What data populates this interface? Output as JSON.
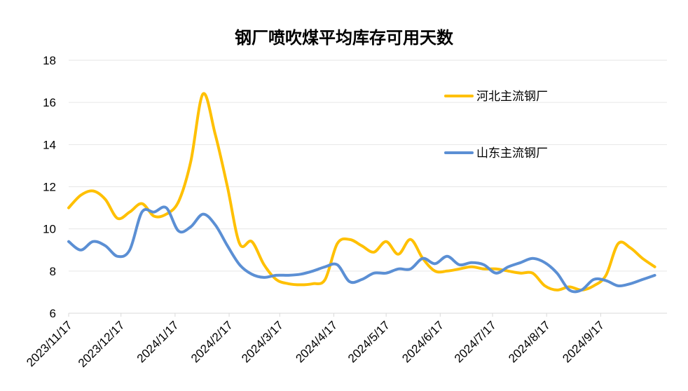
{
  "chart_data": {
    "type": "line",
    "title": "钢厂喷吹煤平均库存可用天数",
    "xlabel": "",
    "ylabel": "",
    "ylim": [
      6,
      18
    ],
    "yticks": [
      "6",
      "8",
      "10",
      "12",
      "14",
      "16",
      "18"
    ],
    "xlim": [
      "2023/11/17",
      "2024/10/25"
    ],
    "x_tick_labels": [
      "2023/11/17",
      "2023/12/17",
      "2024/1/17",
      "2024/2/17",
      "2024/3/17",
      "2024/4/17",
      "2024/5/17",
      "2024/6/17",
      "2024/7/17",
      "2024/8/17",
      "2024/9/17"
    ],
    "grid": "horizontal",
    "legend_position": "right",
    "series": [
      {
        "name": "河北主流钢厂",
        "color": "#FFC000",
        "points": [
          [
            "2023/11/17",
            11.0
          ],
          [
            "2023/11/24",
            11.6
          ],
          [
            "2023/12/1",
            11.8
          ],
          [
            "2023/12/8",
            11.4
          ],
          [
            "2023/12/15",
            10.5
          ],
          [
            "2023/12/22",
            10.8
          ],
          [
            "2023/12/29",
            11.2
          ],
          [
            "2024/1/5",
            10.6
          ],
          [
            "2024/1/12",
            10.7
          ],
          [
            "2024/1/19",
            11.3
          ],
          [
            "2024/1/26",
            13.2
          ],
          [
            "2024/2/2",
            16.4
          ],
          [
            "2024/2/9",
            14.5
          ],
          [
            "2024/2/16",
            12.0
          ],
          [
            "2024/2/23",
            9.3
          ],
          [
            "2024/3/1",
            9.4
          ],
          [
            "2024/3/8",
            8.3
          ],
          [
            "2024/3/15",
            7.6
          ],
          [
            "2024/3/22",
            7.4
          ],
          [
            "2024/3/29",
            7.35
          ],
          [
            "2024/4/5",
            7.4
          ],
          [
            "2024/4/12",
            7.6
          ],
          [
            "2024/4/19",
            9.3
          ],
          [
            "2024/4/26",
            9.5
          ],
          [
            "2024/5/3",
            9.2
          ],
          [
            "2024/5/10",
            8.9
          ],
          [
            "2024/5/17",
            9.4
          ],
          [
            "2024/5/24",
            8.8
          ],
          [
            "2024/5/31",
            9.5
          ],
          [
            "2024/6/7",
            8.6
          ],
          [
            "2024/6/14",
            8.0
          ],
          [
            "2024/6/21",
            8.0
          ],
          [
            "2024/6/28",
            8.1
          ],
          [
            "2024/7/5",
            8.2
          ],
          [
            "2024/7/12",
            8.1
          ],
          [
            "2024/7/19",
            8.1
          ],
          [
            "2024/7/26",
            8.0
          ],
          [
            "2024/8/2",
            7.9
          ],
          [
            "2024/8/9",
            7.9
          ],
          [
            "2024/8/16",
            7.3
          ],
          [
            "2024/8/23",
            7.1
          ],
          [
            "2024/8/30",
            7.25
          ],
          [
            "2024/9/6",
            7.1
          ],
          [
            "2024/9/13",
            7.3
          ],
          [
            "2024/9/20",
            7.8
          ],
          [
            "2024/9/27",
            9.3
          ],
          [
            "2024/10/4",
            9.1
          ],
          [
            "2024/10/11",
            8.6
          ],
          [
            "2024/10/18",
            8.2
          ]
        ]
      },
      {
        "name": "山东主流钢厂",
        "color": "#5B8FD4",
        "points": [
          [
            "2023/11/17",
            9.4
          ],
          [
            "2023/11/24",
            9.0
          ],
          [
            "2023/12/1",
            9.4
          ],
          [
            "2023/12/8",
            9.2
          ],
          [
            "2023/12/15",
            8.7
          ],
          [
            "2023/12/22",
            9.0
          ],
          [
            "2023/12/29",
            10.8
          ],
          [
            "2024/1/5",
            10.8
          ],
          [
            "2024/1/12",
            11.0
          ],
          [
            "2024/1/19",
            9.9
          ],
          [
            "2024/1/26",
            10.1
          ],
          [
            "2024/2/2",
            10.7
          ],
          [
            "2024/2/9",
            10.2
          ],
          [
            "2024/2/16",
            9.2
          ],
          [
            "2024/2/23",
            8.3
          ],
          [
            "2024/3/1",
            7.85
          ],
          [
            "2024/3/8",
            7.7
          ],
          [
            "2024/3/15",
            7.8
          ],
          [
            "2024/3/22",
            7.8
          ],
          [
            "2024/3/29",
            7.85
          ],
          [
            "2024/4/5",
            8.0
          ],
          [
            "2024/4/12",
            8.2
          ],
          [
            "2024/4/19",
            8.3
          ],
          [
            "2024/4/26",
            7.5
          ],
          [
            "2024/5/3",
            7.6
          ],
          [
            "2024/5/10",
            7.9
          ],
          [
            "2024/5/17",
            7.9
          ],
          [
            "2024/5/24",
            8.1
          ],
          [
            "2024/5/31",
            8.1
          ],
          [
            "2024/6/7",
            8.6
          ],
          [
            "2024/6/14",
            8.35
          ],
          [
            "2024/6/21",
            8.7
          ],
          [
            "2024/6/28",
            8.3
          ],
          [
            "2024/7/5",
            8.4
          ],
          [
            "2024/7/12",
            8.3
          ],
          [
            "2024/7/19",
            7.9
          ],
          [
            "2024/7/26",
            8.2
          ],
          [
            "2024/8/2",
            8.4
          ],
          [
            "2024/8/9",
            8.6
          ],
          [
            "2024/8/16",
            8.4
          ],
          [
            "2024/8/23",
            7.9
          ],
          [
            "2024/8/30",
            7.1
          ],
          [
            "2024/9/6",
            7.1
          ],
          [
            "2024/9/13",
            7.6
          ],
          [
            "2024/9/20",
            7.55
          ],
          [
            "2024/9/27",
            7.3
          ],
          [
            "2024/10/4",
            7.4
          ],
          [
            "2024/10/11",
            7.6
          ],
          [
            "2024/10/18",
            7.8
          ]
        ]
      }
    ]
  }
}
